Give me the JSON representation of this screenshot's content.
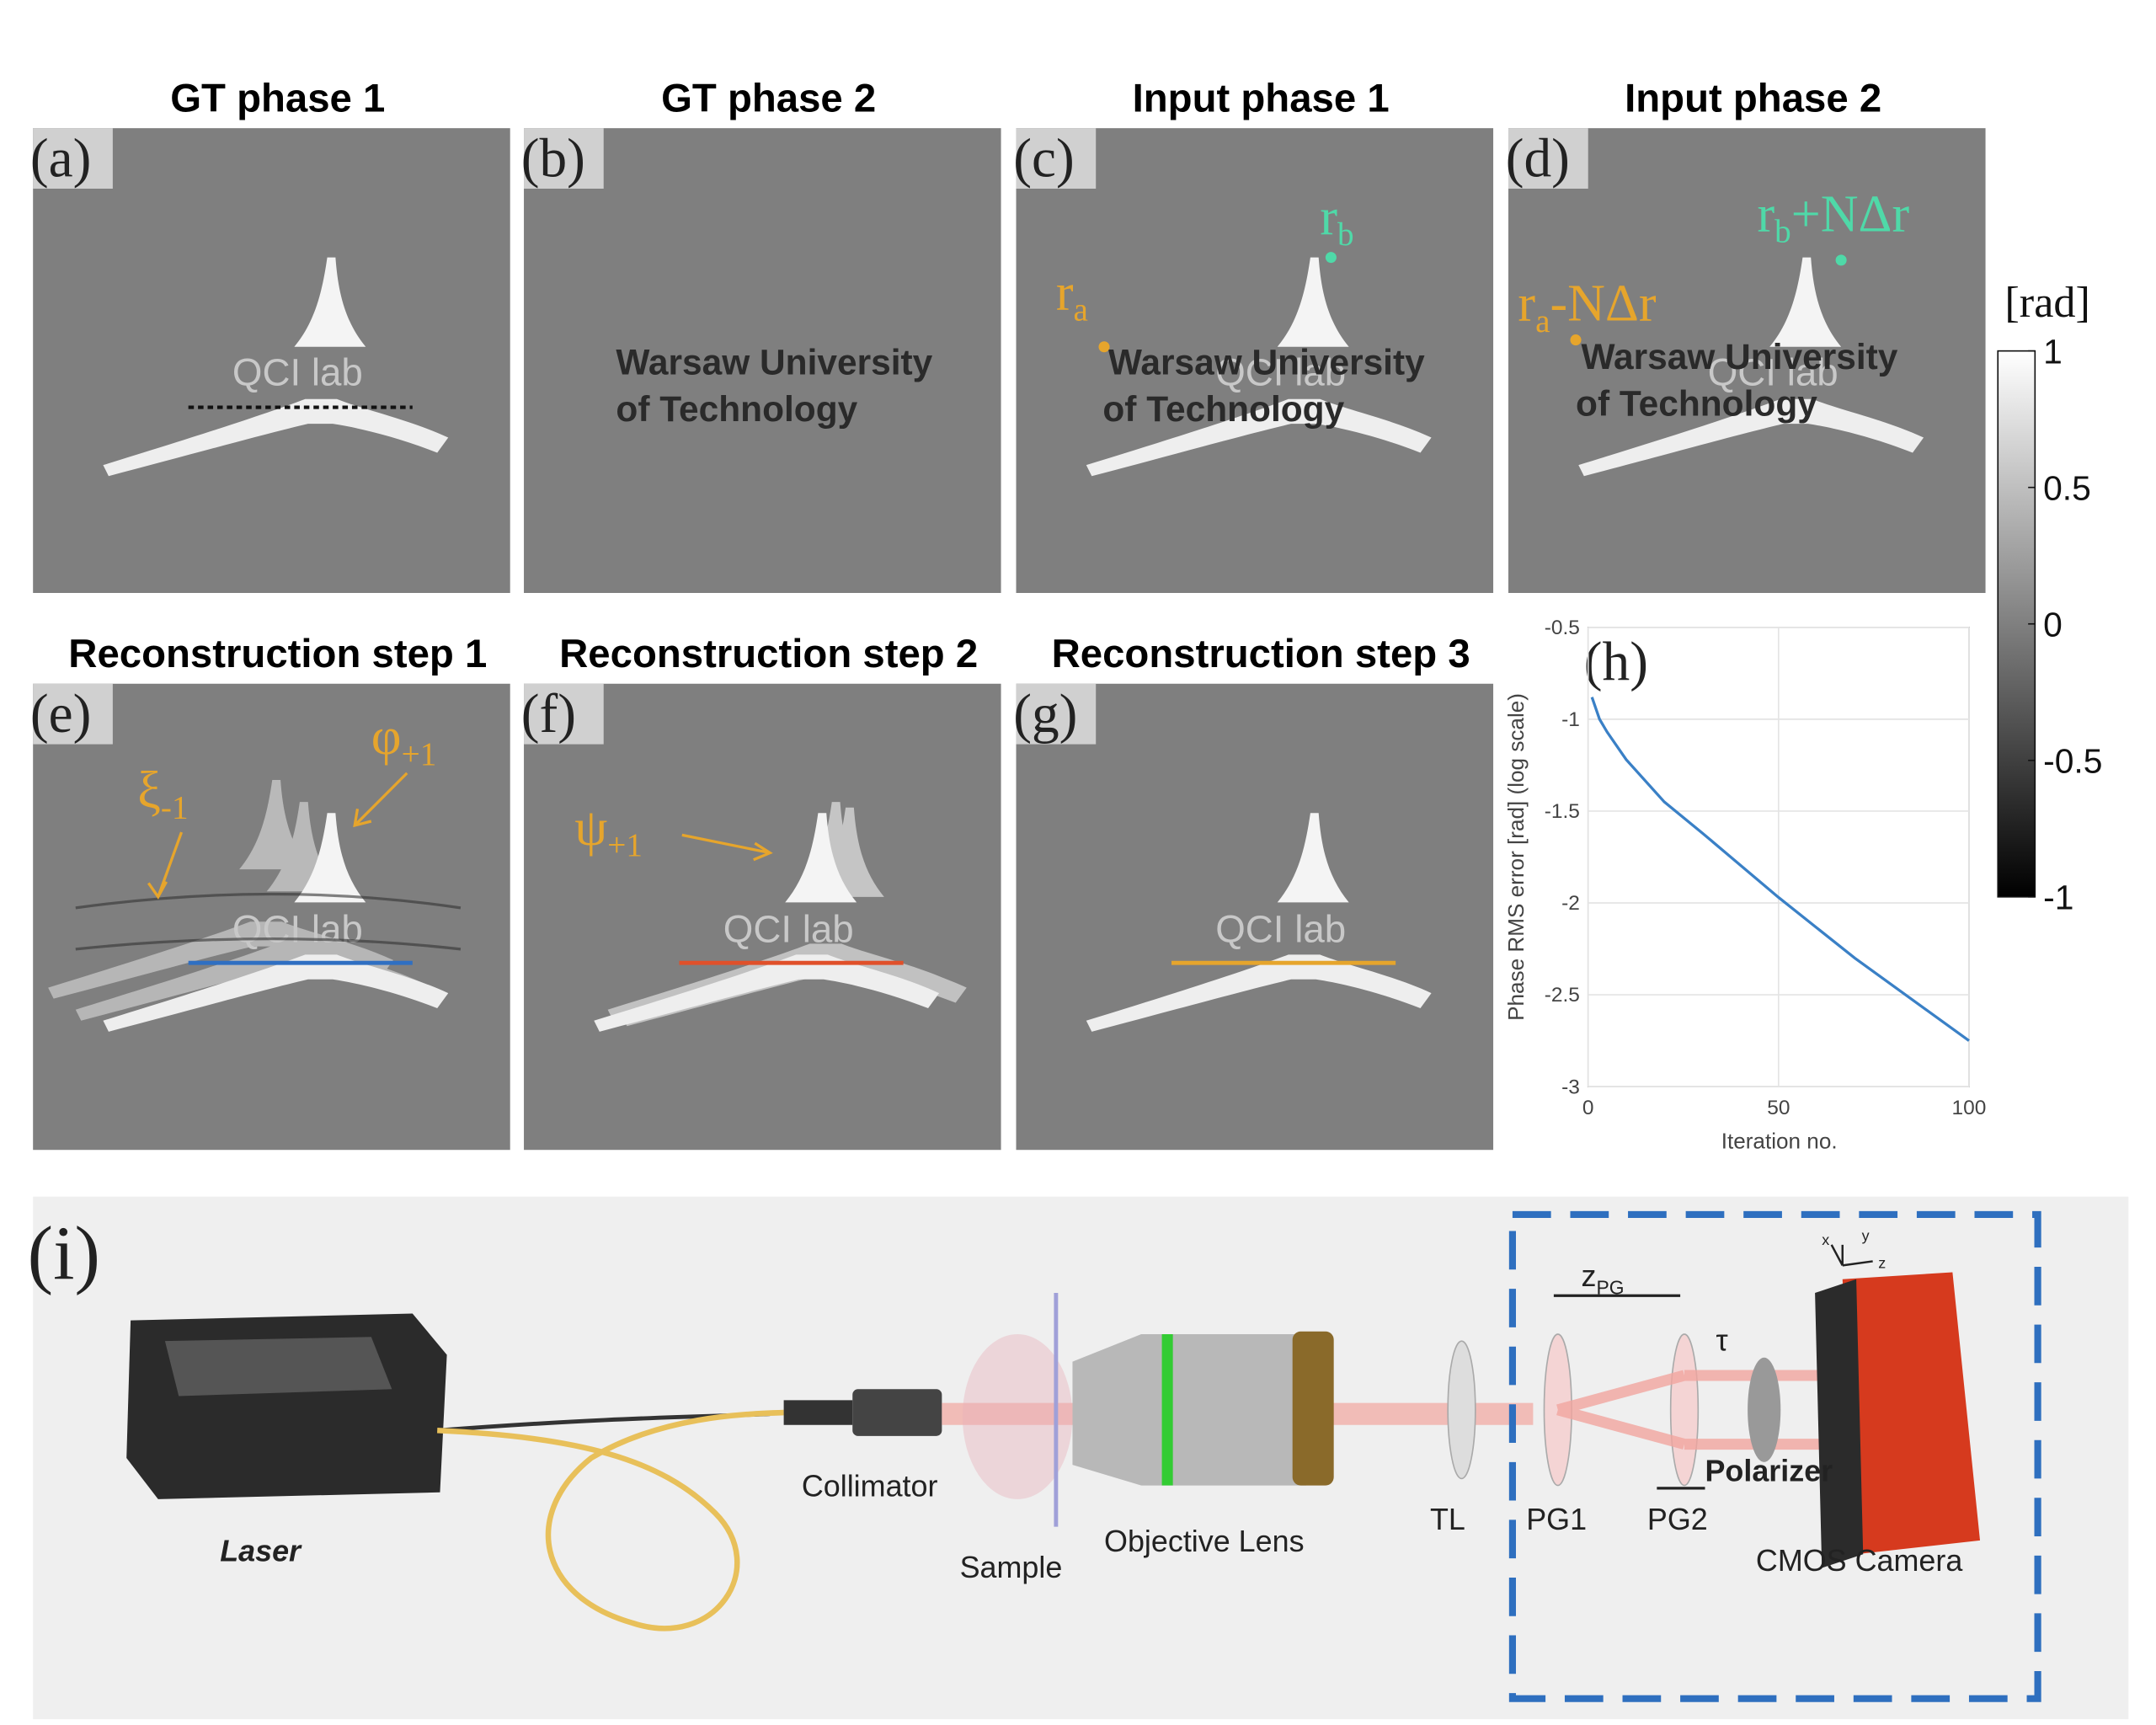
{
  "panels": [
    {
      "label": "(a)",
      "title": "GT phase 1"
    },
    {
      "label": "(b)",
      "title": "GT phase 2"
    },
    {
      "label": "(c)",
      "title": "Input phase 1"
    },
    {
      "label": "(d)",
      "title": "Input phase 2"
    },
    {
      "label": "(e)",
      "title": "Reconstruction step 1"
    },
    {
      "label": "(f)",
      "title": "Reconstruction step 2"
    },
    {
      "label": "(g)",
      "title": "Reconstruction step 3"
    }
  ],
  "image_text": {
    "qci": "QCI lab",
    "wut": [
      "Warsaw University",
      "of Technology"
    ]
  },
  "annotations": {
    "ra": {
      "base": "r",
      "sub": "a"
    },
    "rb": {
      "base": "r",
      "sub": "b"
    },
    "ra_shift": {
      "base": "r",
      "sub": "a",
      "rest": "-NΔr"
    },
    "rb_shift": {
      "base": "r",
      "sub": "b",
      "rest": "+NΔr"
    },
    "xi": {
      "base": "ξ",
      "sub": "-1"
    },
    "phi": {
      "base": "φ",
      "sub": "+1"
    },
    "psi": {
      "base": "ψ",
      "sub": "+1"
    }
  },
  "colorbar": {
    "label": "[rad]",
    "lim": [
      -1,
      1
    ],
    "ticks": [
      1,
      0.5,
      0,
      -0.5,
      -1
    ]
  },
  "chart_data": {
    "type": "line",
    "label": "(h)",
    "xlabel": "Iteration no.",
    "ylabel": "Phase RMS error [rad] (log scale)",
    "x": [
      1,
      3,
      5,
      10,
      20,
      30,
      50,
      70,
      100
    ],
    "series": [
      {
        "color": "#3a80c6",
        "values": [
          -0.88,
          -1.0,
          -1.07,
          -1.22,
          -1.45,
          -1.62,
          -1.97,
          -2.3,
          -2.75
        ]
      }
    ],
    "xlim": [
      0,
      100
    ],
    "ylim": [
      -3,
      -0.5
    ],
    "xticks": [
      0,
      50,
      100
    ],
    "yticks": [
      -0.5,
      -1,
      -1.5,
      -2,
      -2.5,
      -3
    ],
    "grid": true
  },
  "setup": {
    "label": "(i)",
    "components": [
      "Laser",
      "Collimator",
      "Sample",
      "Objective Lens",
      "TL",
      "PG1",
      "PG2",
      "Polarizer",
      "CMOS Camera"
    ],
    "zpg": {
      "base": "z",
      "sub": "PG"
    },
    "tau": "τ",
    "axes": [
      "x",
      "y",
      "z"
    ]
  }
}
